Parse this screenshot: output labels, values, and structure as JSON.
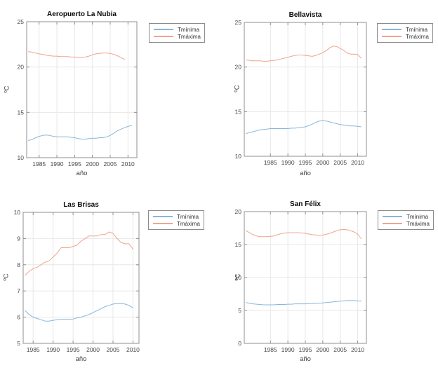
{
  "figure": {
    "background": "#ffffff",
    "colors": {
      "tmin": "#8ab6d9",
      "tmax": "#f0a48e",
      "axis_box": "#8f8f8f",
      "grid": "#e7e7e7",
      "tick_label": "#464646"
    },
    "legend_labels": {
      "tmin": "Tmínima",
      "tmax": "Tmáxima"
    }
  },
  "chart_data": [
    {
      "type": "line",
      "title": "Aeropuerto La Nubia",
      "xlabel": "año",
      "ylabel": "ºC",
      "xlim": [
        1981.5,
        2012.5
      ],
      "ylim": [
        10,
        25
      ],
      "xticks": [
        1985,
        1990,
        1995,
        2000,
        2005,
        2010
      ],
      "yticks": [
        10,
        15,
        20,
        25
      ],
      "grid": true,
      "legend": [
        "Tmínima",
        "Tmáxima"
      ],
      "legend_position": "northeast-outside",
      "series": [
        {
          "name": "Tmínima",
          "color": "#8ab6d9",
          "x": [
            1982,
            1983,
            1984,
            1985,
            1986,
            1987,
            1988,
            1989,
            1990,
            1991,
            1992,
            1993,
            1994,
            1995,
            1996,
            1997,
            1998,
            1999,
            2000,
            2001,
            2002,
            2003,
            2004,
            2005,
            2006,
            2007,
            2008,
            2009,
            2010,
            2011
          ],
          "y": [
            11.9,
            12.0,
            12.2,
            12.35,
            12.45,
            12.5,
            12.45,
            12.35,
            12.3,
            12.3,
            12.3,
            12.3,
            12.25,
            12.2,
            12.1,
            12.05,
            12.05,
            12.1,
            12.15,
            12.15,
            12.2,
            12.2,
            12.3,
            12.45,
            12.7,
            12.95,
            13.15,
            13.3,
            13.45,
            13.55
          ]
        },
        {
          "name": "Tmáxima",
          "color": "#f0a48e",
          "x": [
            1982,
            1983,
            1984,
            1985,
            1986,
            1987,
            1988,
            1989,
            1990,
            1991,
            1992,
            1993,
            1994,
            1995,
            1996,
            1997,
            1998,
            1999,
            2000,
            2001,
            2002,
            2003,
            2004,
            2005,
            2006,
            2007,
            2008,
            2009
          ],
          "y": [
            21.7,
            21.65,
            21.55,
            21.45,
            21.4,
            21.3,
            21.25,
            21.2,
            21.2,
            21.15,
            21.15,
            21.15,
            21.1,
            21.1,
            21.05,
            21.05,
            21.1,
            21.2,
            21.35,
            21.45,
            21.5,
            21.55,
            21.55,
            21.5,
            21.4,
            21.25,
            21.05,
            20.85
          ]
        }
      ]
    },
    {
      "type": "line",
      "title": "Bellavista",
      "xlabel": "año",
      "ylabel": "ºC",
      "xlim": [
        1977.5,
        2012.5
      ],
      "ylim": [
        10,
        25
      ],
      "xticks": [
        1985,
        1990,
        1995,
        2000,
        2005,
        2010
      ],
      "yticks": [
        10,
        15,
        20,
        25
      ],
      "grid": true,
      "legend": [
        "Tmínima",
        "Tmáxima"
      ],
      "legend_position": "northeast-outside",
      "series": [
        {
          "name": "Tmínima",
          "color": "#8ab6d9",
          "x": [
            1978,
            1979,
            1980,
            1981,
            1982,
            1983,
            1984,
            1985,
            1986,
            1987,
            1988,
            1989,
            1990,
            1991,
            1992,
            1993,
            1994,
            1995,
            1996,
            1997,
            1998,
            1999,
            2000,
            2001,
            2002,
            2003,
            2004,
            2005,
            2006,
            2007,
            2008,
            2009,
            2010,
            2011
          ],
          "y": [
            12.55,
            12.65,
            12.75,
            12.85,
            12.95,
            13.0,
            13.05,
            13.1,
            13.1,
            13.1,
            13.1,
            13.1,
            13.1,
            13.15,
            13.15,
            13.2,
            13.25,
            13.3,
            13.45,
            13.6,
            13.8,
            13.95,
            14.0,
            13.95,
            13.85,
            13.75,
            13.65,
            13.55,
            13.5,
            13.45,
            13.4,
            13.4,
            13.35,
            13.3
          ]
        },
        {
          "name": "Tmáxima",
          "color": "#f0a48e",
          "x": [
            1978,
            1979,
            1980,
            1981,
            1982,
            1983,
            1984,
            1985,
            1986,
            1987,
            1988,
            1989,
            1990,
            1991,
            1992,
            1993,
            1994,
            1995,
            1996,
            1997,
            1998,
            1999,
            2000,
            2001,
            2002,
            2003,
            2004,
            2005,
            2006,
            2007,
            2008,
            2009,
            2010,
            2011
          ],
          "y": [
            20.8,
            20.75,
            20.7,
            20.7,
            20.7,
            20.65,
            20.65,
            20.7,
            20.75,
            20.8,
            20.9,
            21.0,
            21.1,
            21.2,
            21.3,
            21.35,
            21.35,
            21.3,
            21.25,
            21.2,
            21.3,
            21.45,
            21.6,
            21.85,
            22.15,
            22.35,
            22.3,
            22.1,
            21.85,
            21.55,
            21.45,
            21.45,
            21.4,
            21.0
          ]
        }
      ]
    },
    {
      "type": "line",
      "title": "Las Brisas",
      "xlabel": "año",
      "ylabel": "ºC",
      "xlim": [
        1982.5,
        2011.5
      ],
      "ylim": [
        5,
        10
      ],
      "xticks": [
        1985,
        1990,
        1995,
        2000,
        2005,
        2010
      ],
      "yticks": [
        5,
        6,
        7,
        8,
        9,
        10
      ],
      "grid": true,
      "legend": [
        "Tmínima",
        "Tmáxima"
      ],
      "legend_position": "northeast-outside",
      "series": [
        {
          "name": "Tmínima",
          "color": "#8ab6d9",
          "x": [
            1983,
            1984,
            1985,
            1986,
            1987,
            1988,
            1989,
            1990,
            1991,
            1992,
            1993,
            1994,
            1995,
            1996,
            1997,
            1998,
            1999,
            2000,
            2001,
            2002,
            2003,
            2004,
            2005,
            2006,
            2007,
            2008,
            2009,
            2010
          ],
          "y": [
            6.25,
            6.1,
            6.0,
            5.95,
            5.9,
            5.85,
            5.85,
            5.88,
            5.9,
            5.92,
            5.92,
            5.92,
            5.93,
            5.97,
            6.0,
            6.05,
            6.1,
            6.18,
            6.25,
            6.32,
            6.4,
            6.45,
            6.5,
            6.52,
            6.52,
            6.5,
            6.45,
            6.35
          ]
        },
        {
          "name": "Tmáxima",
          "color": "#f0a48e",
          "x": [
            1983,
            1984,
            1985,
            1986,
            1987,
            1988,
            1989,
            1990,
            1991,
            1992,
            1993,
            1994,
            1995,
            1996,
            1997,
            1998,
            1999,
            2000,
            2001,
            2002,
            2003,
            2004,
            2005,
            2006,
            2007,
            2008,
            2009,
            2010
          ],
          "y": [
            7.6,
            7.75,
            7.85,
            7.9,
            8.0,
            8.1,
            8.15,
            8.3,
            8.45,
            8.65,
            8.65,
            8.65,
            8.7,
            8.75,
            8.9,
            9.0,
            9.1,
            9.1,
            9.1,
            9.15,
            9.15,
            9.25,
            9.2,
            9.0,
            8.85,
            8.8,
            8.8,
            8.6
          ]
        }
      ]
    },
    {
      "type": "line",
      "title": "San Félix",
      "xlabel": "año",
      "ylabel": "ºC",
      "xlim": [
        1977.5,
        2012.5
      ],
      "ylim": [
        0,
        20
      ],
      "xticks": [
        1985,
        1990,
        1995,
        2000,
        2005,
        2010
      ],
      "yticks": [
        0,
        5,
        10,
        15,
        20
      ],
      "grid": true,
      "legend": [
        "Tmínima",
        "Tmáxima"
      ],
      "legend_position": "northeast-outside",
      "series": [
        {
          "name": "Tmínima",
          "color": "#8ab6d9",
          "x": [
            1978,
            1979,
            1980,
            1981,
            1982,
            1983,
            1984,
            1985,
            1986,
            1987,
            1988,
            1989,
            1990,
            1991,
            1992,
            1993,
            1994,
            1995,
            1996,
            1997,
            1998,
            1999,
            2000,
            2001,
            2002,
            2003,
            2004,
            2005,
            2006,
            2007,
            2008,
            2009,
            2010,
            2011
          ],
          "y": [
            6.2,
            6.1,
            6.0,
            5.95,
            5.9,
            5.85,
            5.85,
            5.85,
            5.85,
            5.9,
            5.9,
            5.9,
            5.95,
            5.95,
            6.0,
            6.0,
            6.0,
            6.0,
            6.05,
            6.05,
            6.1,
            6.1,
            6.15,
            6.2,
            6.25,
            6.3,
            6.35,
            6.4,
            6.45,
            6.5,
            6.5,
            6.5,
            6.45,
            6.4
          ]
        },
        {
          "name": "Tmáxima",
          "color": "#f0a48e",
          "x": [
            1978,
            1979,
            1980,
            1981,
            1982,
            1983,
            1984,
            1985,
            1986,
            1987,
            1988,
            1989,
            1990,
            1991,
            1992,
            1993,
            1994,
            1995,
            1996,
            1997,
            1998,
            1999,
            2000,
            2001,
            2002,
            2003,
            2004,
            2005,
            2006,
            2007,
            2008,
            2009,
            2010,
            2011
          ],
          "y": [
            17.1,
            16.8,
            16.5,
            16.3,
            16.2,
            16.2,
            16.2,
            16.25,
            16.3,
            16.5,
            16.65,
            16.75,
            16.8,
            16.8,
            16.8,
            16.8,
            16.75,
            16.7,
            16.6,
            16.5,
            16.45,
            16.4,
            16.45,
            16.55,
            16.7,
            16.9,
            17.1,
            17.25,
            17.3,
            17.25,
            17.1,
            16.9,
            16.6,
            15.9
          ]
        }
      ]
    }
  ]
}
